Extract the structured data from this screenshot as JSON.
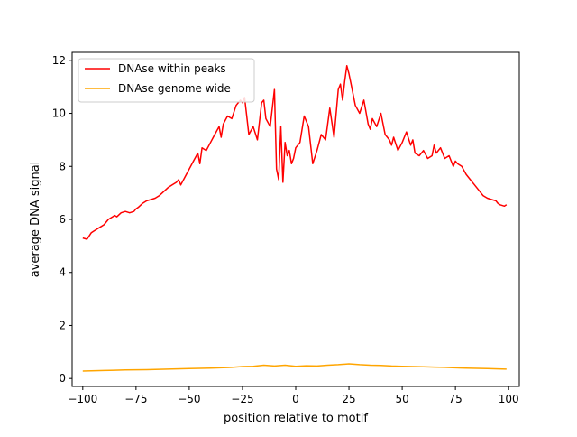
{
  "chart_data": {
    "type": "line",
    "xlabel": "position relative to motif",
    "ylabel": "average DNA signal",
    "xlim": [
      -105,
      105
    ],
    "ylim": [
      -0.3,
      12.3
    ],
    "xticks": [
      -100,
      -75,
      -50,
      -25,
      0,
      25,
      50,
      75,
      100
    ],
    "yticks": [
      0,
      2,
      4,
      6,
      8,
      10,
      12
    ],
    "grid": false,
    "legend_position": "top-left",
    "series": [
      {
        "name": "DNAse within peaks",
        "color": "#ff0000",
        "x": [
          -100,
          -98,
          -96,
          -95,
          -94,
          -92,
          -90,
          -88,
          -86,
          -85,
          -84,
          -82,
          -80,
          -78,
          -76,
          -75,
          -74,
          -72,
          -70,
          -68,
          -66,
          -65,
          -64,
          -62,
          -60,
          -58,
          -56,
          -55,
          -54,
          -52,
          -50,
          -48,
          -46,
          -45,
          -44,
          -42,
          -40,
          -38,
          -36,
          -35,
          -34,
          -32,
          -30,
          -28,
          -26,
          -25,
          -24,
          -22,
          -20,
          -18,
          -16,
          -15,
          -14,
          -12,
          -10,
          -9,
          -8,
          -7,
          -6,
          -5,
          -4,
          -3,
          -2,
          -1,
          0,
          2,
          4,
          6,
          8,
          10,
          12,
          14,
          16,
          18,
          20,
          21,
          22,
          23,
          24,
          25,
          26,
          28,
          30,
          32,
          34,
          35,
          36,
          38,
          40,
          42,
          44,
          45,
          46,
          48,
          50,
          52,
          54,
          55,
          56,
          58,
          60,
          62,
          64,
          65,
          66,
          68,
          70,
          72,
          74,
          75,
          76,
          78,
          80,
          82,
          84,
          85,
          86,
          88,
          90,
          92,
          94,
          95,
          96,
          98,
          99
        ],
        "y": [
          5.3,
          5.25,
          5.5,
          5.55,
          5.6,
          5.7,
          5.8,
          6.0,
          6.1,
          6.15,
          6.1,
          6.25,
          6.3,
          6.25,
          6.3,
          6.4,
          6.45,
          6.6,
          6.7,
          6.75,
          6.8,
          6.85,
          6.9,
          7.05,
          7.2,
          7.3,
          7.4,
          7.5,
          7.3,
          7.6,
          7.9,
          8.2,
          8.5,
          8.1,
          8.7,
          8.6,
          8.9,
          9.2,
          9.5,
          9.1,
          9.6,
          9.9,
          9.8,
          10.3,
          10.5,
          10.4,
          10.6,
          9.2,
          9.5,
          9.0,
          10.4,
          10.5,
          9.8,
          9.5,
          10.9,
          7.9,
          7.5,
          9.5,
          7.4,
          8.9,
          8.4,
          8.6,
          8.1,
          8.3,
          8.7,
          8.9,
          9.9,
          9.5,
          8.1,
          8.6,
          9.2,
          9.0,
          10.2,
          9.1,
          10.9,
          11.1,
          10.5,
          11.2,
          11.8,
          11.5,
          11.1,
          10.3,
          10.0,
          10.5,
          9.6,
          9.4,
          9.8,
          9.5,
          10.0,
          9.2,
          9.0,
          8.8,
          9.1,
          8.6,
          8.9,
          9.3,
          8.8,
          9.0,
          8.5,
          8.4,
          8.6,
          8.3,
          8.4,
          8.8,
          8.5,
          8.7,
          8.3,
          8.4,
          8.0,
          8.2,
          8.1,
          8.0,
          7.7,
          7.5,
          7.3,
          7.2,
          7.1,
          6.9,
          6.8,
          6.75,
          6.7,
          6.6,
          6.55,
          6.5,
          6.55
        ]
      },
      {
        "name": "DNAse genome wide",
        "color": "#ffa500",
        "x": [
          -100,
          -90,
          -80,
          -70,
          -60,
          -50,
          -40,
          -30,
          -25,
          -20,
          -15,
          -10,
          -5,
          0,
          5,
          10,
          15,
          20,
          25,
          30,
          35,
          40,
          45,
          50,
          55,
          60,
          65,
          70,
          75,
          80,
          85,
          90,
          95,
          99
        ],
        "y": [
          0.28,
          0.3,
          0.32,
          0.33,
          0.35,
          0.37,
          0.39,
          0.42,
          0.45,
          0.46,
          0.5,
          0.47,
          0.5,
          0.46,
          0.48,
          0.47,
          0.5,
          0.52,
          0.55,
          0.52,
          0.5,
          0.49,
          0.47,
          0.46,
          0.45,
          0.44,
          0.43,
          0.42,
          0.4,
          0.39,
          0.38,
          0.37,
          0.36,
          0.35
        ]
      }
    ]
  }
}
